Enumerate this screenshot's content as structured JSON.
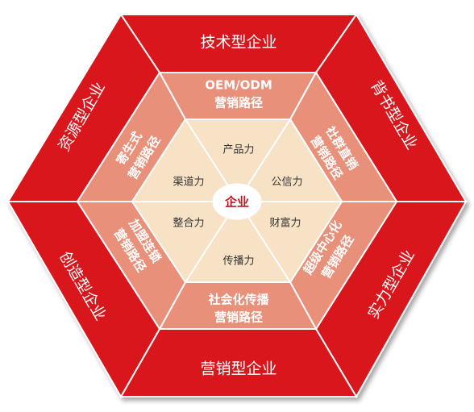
{
  "colors": {
    "outer_fill": "#d9151e",
    "outer_stroke": "#ffffff",
    "middle_fill": "#e8907a",
    "inner_fill": "#f8e2c6",
    "center_text": "#c0141c"
  },
  "outer_ring": {
    "top": "技术型企业",
    "upper_right": "背书型企业",
    "lower_right": "实力型企业",
    "bottom": "营销型企业",
    "lower_left": "创造型企业",
    "upper_left": "资源型企业"
  },
  "middle_ring": {
    "top": [
      "OEM/ODM",
      "营销路径"
    ],
    "upper_right": "社群直销营销路径",
    "lower_right": "超级中心化营销路径",
    "bottom": [
      "社会化传播",
      "营销路径"
    ],
    "lower_left": "加盟连锁营销路径",
    "upper_left": "寄生式营销路径"
  },
  "inner_ring": {
    "top": "产品力",
    "upper_right": "公信力",
    "lower_right": "财富力",
    "bottom": "传播力",
    "lower_left": "整合力",
    "upper_left": "渠道力"
  },
  "center": "企业"
}
